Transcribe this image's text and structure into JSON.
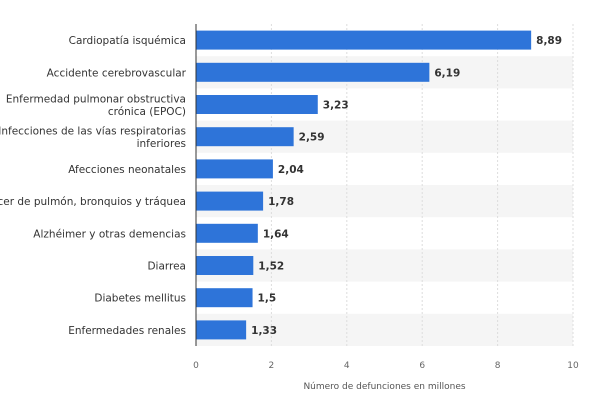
{
  "chart_data": {
    "type": "bar",
    "orientation": "horizontal",
    "categories": [
      [
        "Cardiopatía isquémica"
      ],
      [
        "Accidente cerebrovascular"
      ],
      [
        "Enfermedad pulmonar obstructiva",
        "crónica (EPOC)"
      ],
      [
        "Infecciones de las vías respiratorias",
        "inferiores"
      ],
      [
        "Afecciones neonatales"
      ],
      [
        "Cáncer de pulmón, bronquios y tráquea"
      ],
      [
        "Alzhéimer y otras demencias"
      ],
      [
        "Diarrea"
      ],
      [
        "Diabetes mellitus"
      ],
      [
        "Enfermedades renales"
      ]
    ],
    "values": [
      8.89,
      6.19,
      3.23,
      2.59,
      2.04,
      1.78,
      1.64,
      1.52,
      1.5,
      1.33
    ],
    "value_labels": [
      "8,89",
      "6,19",
      "3,23",
      "2,59",
      "2,04",
      "1,78",
      "1,64",
      "1,52",
      "1,5",
      "1,33"
    ],
    "xlim": [
      0,
      10
    ],
    "xticks": [
      0,
      2,
      4,
      6,
      8,
      10
    ],
    "xtick_labels": [
      "0",
      "2",
      "4",
      "6",
      "8",
      "10"
    ],
    "xlabel": "Número de defunciones en millones",
    "ylabel": "",
    "title": "",
    "grid": true,
    "bar_color": "#2e74d9",
    "band_color": "#f5f5f5"
  }
}
